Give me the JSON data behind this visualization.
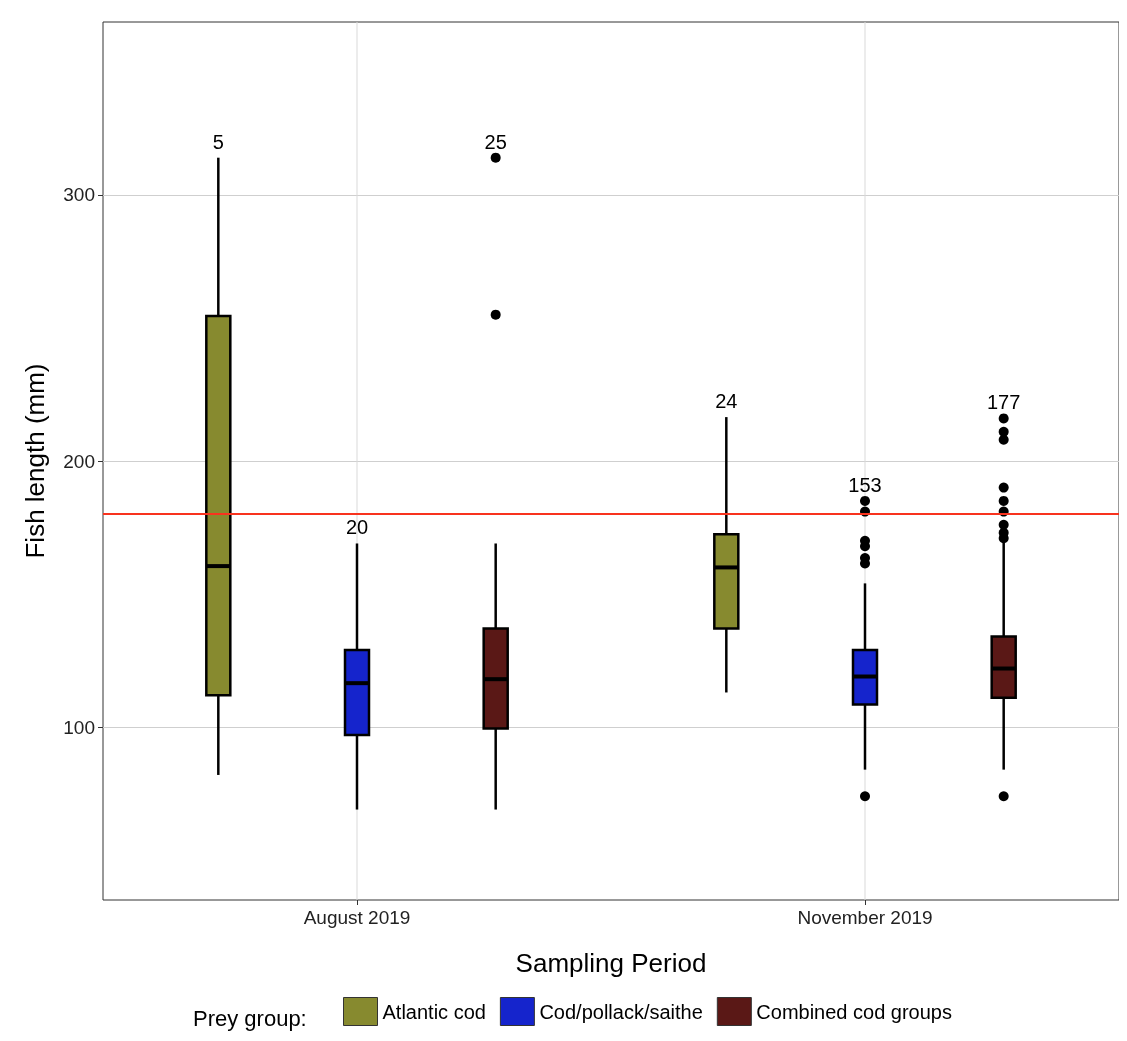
{
  "chart_data": {
    "type": "box",
    "xlabel": "Sampling Period",
    "ylabel": "Fish length (mm)",
    "legend_title": "Prey group:",
    "categories": [
      "August 2019",
      "November 2019"
    ],
    "ylim": [
      35,
      365
    ],
    "yticks": [
      100,
      200,
      300
    ],
    "grid": true,
    "legend": "bottom",
    "series": [
      {
        "name": "Atlantic cod",
        "color": "#878a2f",
        "value_labels": [
          "5",
          "24"
        ],
        "boxes": [
          {
            "low": 82,
            "q1": 112,
            "median": 160.5,
            "q3": 254.5,
            "high": 314
          },
          {
            "low": 113,
            "q1": 137,
            "median": 160,
            "q3": 172.5,
            "high": 216.5
          }
        ]
      },
      {
        "name": "Cod/pollack/saithe",
        "color": "#1524cc",
        "value_labels": [
          "20",
          "153"
        ],
        "boxes": [
          {
            "low": 69,
            "q1": 97,
            "median": 116.5,
            "q3": 129,
            "high": 169
          },
          {
            "low": 84,
            "q1": 108.5,
            "median": 119,
            "q3": 129,
            "high": 154,
            "outliers": [
              74,
              161.5,
              163.5,
              168,
              170,
              181,
              185
            ]
          }
        ]
      },
      {
        "name": "Combined cod groups",
        "color": "#5a1816",
        "value_labels": [
          "25",
          "177"
        ],
        "boxes": [
          {
            "low": 69,
            "q1": 99.5,
            "median": 118,
            "q3": 137,
            "high": 169,
            "outliers": [
              255,
              314
            ]
          },
          {
            "low": 84,
            "q1": 111,
            "median": 122,
            "q3": 134,
            "high": 170,
            "outliers": [
              74,
              171,
              173,
              176,
              181,
              185,
              190,
              208,
              211,
              216
            ]
          }
        ]
      }
    ],
    "ref_lines": [
      {
        "axis": "y",
        "value": 180,
        "color": "#f8331e"
      }
    ]
  }
}
